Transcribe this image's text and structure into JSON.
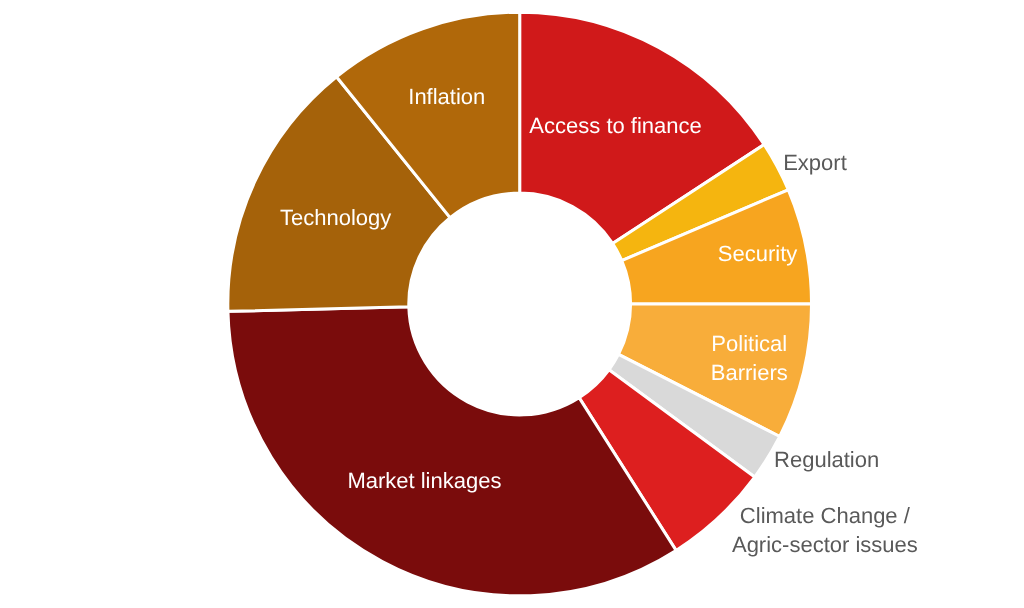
{
  "chart_data": {
    "type": "donut",
    "categories": [
      "Access to finance",
      "Export",
      "Security",
      "Political\nBarriers",
      "Regulation",
      "Climate Change /\nAgric-sector issues",
      "Market linkages",
      "Technology",
      "Inflation"
    ],
    "values": [
      15.8,
      2.8,
      6.4,
      7.5,
      2.6,
      5.9,
      33.6,
      14.6,
      10.8
    ],
    "colors": [
      "#d0191a",
      "#f5b50f",
      "#f7a51f",
      "#f8ad3a",
      "#d9d9d9",
      "#dd1f1f",
      "#7a0c0c",
      "#a5620a",
      "#b0680a"
    ],
    "legend": false
  }
}
